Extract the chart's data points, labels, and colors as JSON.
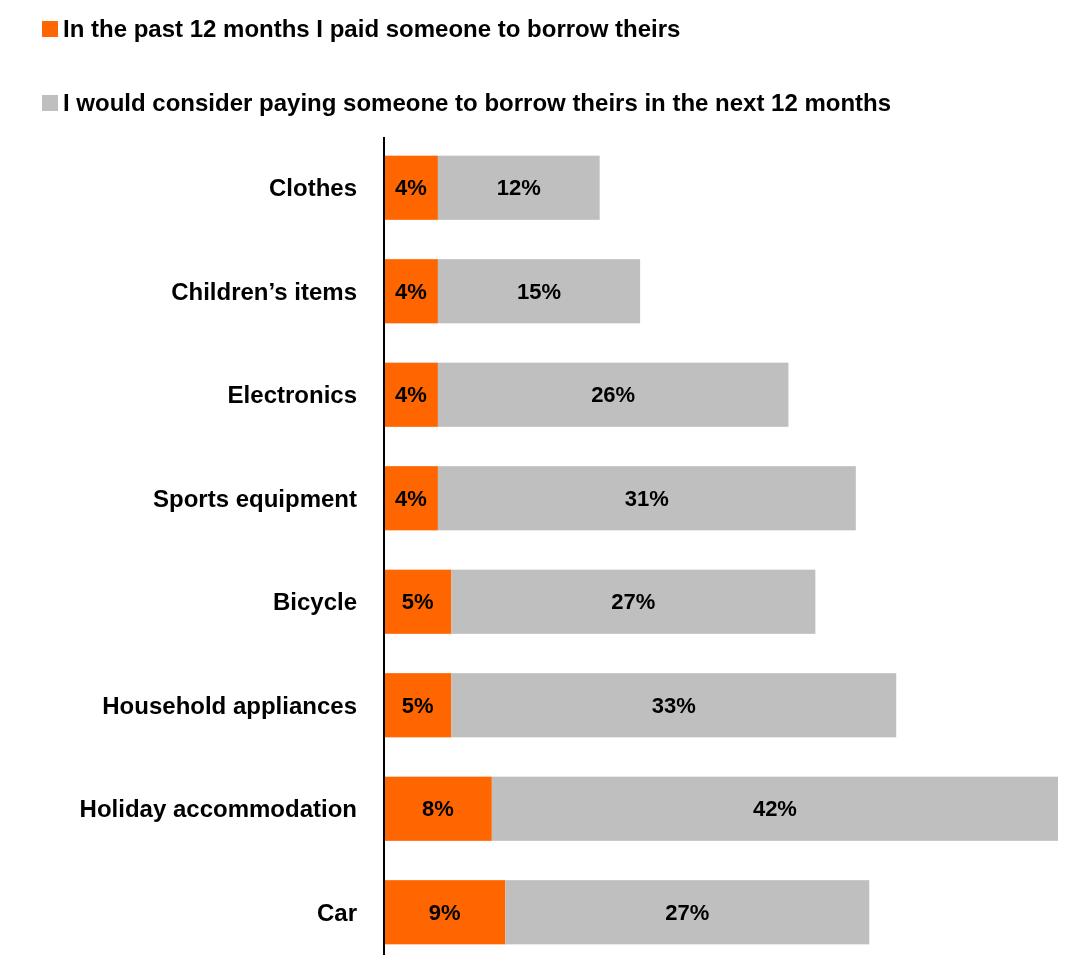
{
  "chart_data": {
    "type": "bar",
    "orientation": "horizontal",
    "stacked": true,
    "legend": "top",
    "tick_labels": "y",
    "categories": [
      "Clothes",
      "Children’s items",
      "Electronics",
      "Sports equipment",
      "Bicycle",
      "Household appliances",
      "Holiday accommodation",
      "Car"
    ],
    "series": [
      {
        "name": "In the past 12 months I paid someone to borrow theirs",
        "color": "#ff6600",
        "values": [
          4,
          4,
          4,
          4,
          5,
          5,
          8,
          9
        ],
        "value_labels": [
          "4%",
          "4%",
          "4%",
          "4%",
          "5%",
          "5%",
          "8%",
          "9%"
        ]
      },
      {
        "name": "I would consider paying someone to borrow theirs in the next 12 months",
        "color": "#bfbfbf",
        "values": [
          12,
          15,
          26,
          31,
          27,
          33,
          42,
          27
        ],
        "value_labels": [
          "12%",
          "15%",
          "26%",
          "31%",
          "27%",
          "33%",
          "42%",
          "27%"
        ]
      }
    ]
  }
}
